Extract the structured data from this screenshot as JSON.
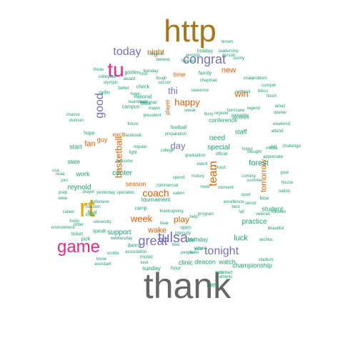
{
  "colors": {
    "background": "#ffffff",
    "teal": "#1b9e77",
    "orange": "#d95f02",
    "purple": "#7570b3",
    "pink": "#e7298a",
    "green": "#66a61e",
    "gold": "#e6ab02",
    "brown": "#a6761d",
    "gray": "#666666"
  },
  "words": [
    {
      "text": "thank",
      "color": "gray",
      "size": 50,
      "vertical": false
    },
    {
      "text": "http",
      "color": "brown",
      "size": 44,
      "vertical": false
    },
    {
      "text": "rt",
      "color": "gold",
      "size": 36,
      "vertical": false
    },
    {
      "text": "tu",
      "color": "pink",
      "size": 28,
      "vertical": false
    },
    {
      "text": "game",
      "color": "pink",
      "size": 24,
      "vertical": false
    },
    {
      "text": "tulsa",
      "color": "purple",
      "size": 20,
      "vertical": false
    },
    {
      "text": "congrat",
      "color": "purple",
      "size": 18,
      "vertical": false
    },
    {
      "text": "great",
      "color": "purple",
      "size": 18,
      "vertical": false
    },
    {
      "text": "tonight",
      "color": "purple",
      "size": 16,
      "vertical": false
    },
    {
      "text": "today",
      "color": "purple",
      "size": 16,
      "vertical": false
    },
    {
      "text": "team",
      "color": "orange",
      "size": 16,
      "vertical": true
    },
    {
      "text": "good",
      "color": "purple",
      "size": 16,
      "vertical": true
    },
    {
      "text": "coach",
      "color": "orange",
      "size": 14,
      "vertical": false
    },
    {
      "text": "week",
      "color": "orange",
      "size": 13,
      "vertical": false
    },
    {
      "text": "basketball",
      "color": "orange",
      "size": 13,
      "vertical": true
    },
    {
      "text": "happy",
      "color": "orange",
      "size": 13,
      "vertical": false
    },
    {
      "text": "win",
      "color": "orange",
      "size": 13,
      "vertical": false
    },
    {
      "text": "day",
      "color": "purple",
      "size": 13,
      "vertical": false
    },
    {
      "text": "thi",
      "color": "purple",
      "size": 13,
      "vertical": false
    },
    {
      "text": "play",
      "color": "orange",
      "size": 12,
      "vertical": false
    },
    {
      "text": "wake",
      "color": "orange",
      "size": 11,
      "vertical": false
    },
    {
      "text": "tomorrow",
      "color": "orange",
      "size": 11,
      "vertical": true
    },
    {
      "text": "night",
      "color": "orange",
      "size": 11,
      "vertical": false
    },
    {
      "text": "new",
      "color": "orange",
      "size": 11,
      "vertical": false
    },
    {
      "text": "fan",
      "color": "orange",
      "size": 11,
      "vertical": false
    },
    {
      "text": "forest",
      "color": "teal",
      "size": 11,
      "vertical": false
    },
    {
      "text": "luck",
      "color": "teal",
      "size": 11,
      "vertical": false
    },
    {
      "text": "support",
      "color": "teal",
      "size": 10,
      "vertical": false
    },
    {
      "text": "need",
      "color": "teal",
      "size": 10,
      "vertical": false
    },
    {
      "text": "special",
      "color": "teal",
      "size": 10,
      "vertical": false
    },
    {
      "text": "practice",
      "color": "teal",
      "size": 10,
      "vertical": false
    },
    {
      "text": "reynold",
      "color": "teal",
      "size": 10,
      "vertical": false
    },
    {
      "text": "center",
      "color": "teal",
      "size": 10,
      "vertical": false
    },
    {
      "text": "championship",
      "color": "teal",
      "size": 9,
      "vertical": false
    },
    {
      "text": "deacon",
      "color": "teal",
      "size": 9,
      "vertical": false
    },
    {
      "text": "watch",
      "color": "teal",
      "size": 9,
      "vertical": false
    },
    {
      "text": "clinic",
      "color": "teal",
      "size": 9,
      "vertical": false
    },
    {
      "text": "men",
      "color": "teal",
      "size": 9,
      "vertical": false
    },
    {
      "text": "season",
      "color": "orange",
      "size": 9,
      "vertical": false
    },
    {
      "text": "time",
      "color": "orange",
      "size": 9,
      "vertical": false
    },
    {
      "text": "start",
      "color": "teal",
      "size": 9,
      "vertical": false
    },
    {
      "text": "work",
      "color": "teal",
      "size": 9,
      "vertical": false
    },
    {
      "text": "student",
      "color": "teal",
      "size": 9,
      "vertical": false
    },
    {
      "text": "staff",
      "color": "teal",
      "size": 9,
      "vertical": false
    },
    {
      "text": "guy",
      "color": "orange",
      "size": 9,
      "vertical": false
    },
    {
      "text": "sunday",
      "color": "teal",
      "size": 8,
      "vertical": false
    },
    {
      "text": "state",
      "color": "teal",
      "size": 8,
      "vertical": false
    },
    {
      "text": "tournament",
      "color": "teal",
      "size": 8,
      "vertical": false
    },
    {
      "text": "birthday",
      "color": "teal",
      "size": 8,
      "vertical": false
    },
    {
      "text": "conference",
      "color": "teal",
      "size": 8,
      "vertical": false
    },
    {
      "text": "holiday",
      "color": "teal",
      "size": 7,
      "vertical": false
    },
    {
      "text": "family",
      "color": "teal",
      "size": 7,
      "vertical": false
    },
    {
      "text": "national",
      "color": "teal",
      "size": 7,
      "vertical": false
    },
    {
      "text": "campus",
      "color": "teal",
      "size": 7,
      "vertical": false
    },
    {
      "text": "football",
      "color": "teal",
      "size": 7,
      "vertical": false
    },
    {
      "text": "final",
      "color": "teal",
      "size": 7,
      "vertical": false
    },
    {
      "text": "camp",
      "color": "teal",
      "size": 7,
      "vertical": false
    },
    {
      "text": "hope",
      "color": "teal",
      "size": 7,
      "vertical": false
    },
    {
      "text": "lose",
      "color": "teal",
      "size": 7,
      "vertical": false
    },
    {
      "text": "radio",
      "color": "teal",
      "size": 7,
      "vertical": false
    },
    {
      "text": "check",
      "color": "teal",
      "size": 7,
      "vertical": false
    },
    {
      "text": "golden",
      "color": "teal",
      "size": 7,
      "vertical": false
    },
    {
      "text": "pick",
      "color": "teal",
      "size": 7,
      "vertical": false
    },
    {
      "text": "women",
      "color": "teal",
      "size": 7,
      "vertical": false
    },
    {
      "text": "excit",
      "color": "orange",
      "size": 8,
      "vertical": false
    },
    {
      "text": "player",
      "color": "orange",
      "size": 8,
      "vertical": true
    },
    {
      "text": "ticket",
      "color": "teal",
      "size": 7,
      "vertical": false
    },
    {
      "text": "speak",
      "color": "teal",
      "size": 7,
      "vertical": false
    },
    {
      "text": "music",
      "color": "teal",
      "size": 7,
      "vertical": false
    },
    {
      "text": "danny",
      "color": "teal",
      "size": 7,
      "vertical": false
    },
    {
      "text": "hour",
      "color": "teal",
      "size": 7,
      "vertical": false
    },
    {
      "text": "open",
      "color": "teal",
      "size": 7,
      "vertical": false
    },
    {
      "text": "life",
      "color": "teal",
      "size": 7,
      "vertical": false
    },
    {
      "text": "career",
      "color": "teal",
      "size": 6,
      "vertical": false
    },
    {
      "text": "environment",
      "color": "teal",
      "size": 6,
      "vertical": false
    },
    {
      "text": "hoop",
      "color": "teal",
      "size": 6,
      "vertical": false
    },
    {
      "text": "order",
      "color": "teal",
      "size": 6,
      "vertical": false
    },
    {
      "text": "prep",
      "color": "teal",
      "size": 6,
      "vertical": false
    },
    {
      "text": "wear",
      "color": "teal",
      "size": 6,
      "vertical": false
    },
    {
      "text": "join",
      "color": "teal",
      "size": 6,
      "vertical": false
    },
    {
      "text": "usa",
      "color": "teal",
      "size": 6,
      "vertical": false
    },
    {
      "text": "ncaa",
      "color": "teal",
      "size": 6,
      "vertical": false
    },
    {
      "text": "chance",
      "color": "teal",
      "size": 6,
      "vertical": false
    },
    {
      "text": "duncan",
      "color": "teal",
      "size": 6,
      "vertical": false
    },
    {
      "text": "throw",
      "color": "teal",
      "size": 6,
      "vertical": false
    },
    {
      "text": "volleyball",
      "color": "teal",
      "size": 6,
      "vertical": false
    },
    {
      "text": "olympic",
      "color": "teal",
      "size": 6,
      "vertical": false
    },
    {
      "text": "award",
      "color": "teal",
      "size": 6,
      "vertical": false
    },
    {
      "text": "second",
      "color": "teal",
      "size": 6,
      "vertical": false
    },
    {
      "text": "believe",
      "color": "teal",
      "size": 6,
      "vertical": false
    },
    {
      "text": "winston",
      "color": "teal",
      "size": 6,
      "vertical": false
    },
    {
      "text": "forward",
      "color": "teal",
      "size": 6,
      "vertical": false
    },
    {
      "text": "leadership",
      "color": "teal",
      "size": 6,
      "vertical": false
    },
    {
      "text": "brown",
      "color": "teal",
      "size": 6,
      "vertical": false
    },
    {
      "text": "person",
      "color": "teal",
      "size": 6,
      "vertical": false
    },
    {
      "text": "sunny",
      "color": "teal",
      "size": 6,
      "vertical": false
    },
    {
      "text": "school",
      "color": "teal",
      "size": 6,
      "vertical": false
    },
    {
      "text": "share",
      "color": "teal",
      "size": 6,
      "vertical": false
    },
    {
      "text": "problem",
      "color": "teal",
      "size": 6,
      "vertical": false
    },
    {
      "text": "compet",
      "color": "teal",
      "size": 6,
      "vertical": false
    },
    {
      "text": "finish",
      "color": "teal",
      "size": 6,
      "vertical": false
    },
    {
      "text": "network",
      "color": "teal",
      "size": 6,
      "vertical": false
    },
    {
      "text": "bless",
      "color": "teal",
      "size": 6,
      "vertical": false
    },
    {
      "text": "amaz",
      "color": "teal",
      "size": 6,
      "vertical": false
    },
    {
      "text": "opener",
      "color": "teal",
      "size": 6,
      "vertical": false
    },
    {
      "text": "weekend",
      "color": "teal",
      "size": 6,
      "vertical": false
    },
    {
      "text": "attend",
      "color": "teal",
      "size": 6,
      "vertical": false
    },
    {
      "text": "visit",
      "color": "teal",
      "size": 6,
      "vertical": false
    },
    {
      "text": "challenge",
      "color": "teal",
      "size": 6,
      "vertical": false
    },
    {
      "text": "goal",
      "color": "teal",
      "size": 6,
      "vertical": false
    },
    {
      "text": "house",
      "color": "teal",
      "size": 6,
      "vertical": false
    },
    {
      "text": "nation",
      "color": "teal",
      "size": 6,
      "vertical": false
    },
    {
      "text": "beautiful",
      "color": "teal",
      "size": 6,
      "vertical": false
    },
    {
      "text": "follower",
      "color": "teal",
      "size": 6,
      "vertical": false
    },
    {
      "text": "veteran",
      "color": "teal",
      "size": 6,
      "vertical": false
    },
    {
      "text": "wichita",
      "color": "teal",
      "size": 6,
      "vertical": false
    },
    {
      "text": "stadium",
      "color": "teal",
      "size": 6,
      "vertical": false
    },
    {
      "text": "athletic",
      "color": "teal",
      "size": 6,
      "vertical": false
    },
    {
      "text": "contact",
      "color": "teal",
      "size": 6,
      "vertical": false
    },
    {
      "text": "know",
      "color": "teal",
      "size": 6,
      "vertical": false
    },
    {
      "text": "assistant",
      "color": "teal",
      "size": 6,
      "vertical": false
    },
    {
      "text": "scottie",
      "color": "teal",
      "size": 6,
      "vertical": false
    },
    {
      "text": "wednesday",
      "color": "teal",
      "size": 6,
      "vertical": false
    },
    {
      "text": "association",
      "color": "teal",
      "size": 6,
      "vertical": false
    },
    {
      "text": "hear",
      "color": "teal",
      "size": 6,
      "vertical": false
    },
    {
      "text": "look",
      "color": "teal",
      "size": 6,
      "vertical": false
    },
    {
      "text": "people",
      "color": "teal",
      "size": 6,
      "vertical": false
    },
    {
      "text": "love",
      "color": "teal",
      "size": 6,
      "vertical": false
    },
    {
      "text": "year",
      "color": "teal",
      "size": 6,
      "vertical": false
    },
    {
      "text": "town",
      "color": "teal",
      "size": 6,
      "vertical": false
    },
    {
      "text": "post",
      "color": "teal",
      "size": 6,
      "vertical": false
    },
    {
      "text": "intensity",
      "color": "teal",
      "size": 6,
      "vertical": false
    },
    {
      "text": "commercial",
      "color": "teal",
      "size": 6,
      "vertical": false
    },
    {
      "text": "spend",
      "color": "teal",
      "size": 6,
      "vertical": false
    },
    {
      "text": "salem",
      "color": "teal",
      "size": 6,
      "vertical": false
    },
    {
      "text": "operation",
      "color": "teal",
      "size": 6,
      "vertical": false
    },
    {
      "text": "yesterday",
      "color": "teal",
      "size": 6,
      "vertical": false
    },
    {
      "text": "prayer",
      "color": "teal",
      "size": 6,
      "vertical": false
    },
    {
      "text": "welcome",
      "color": "teal",
      "size": 6,
      "vertical": false
    },
    {
      "text": "fight",
      "color": "teal",
      "size": 6,
      "vertical": false
    },
    {
      "text": "regular",
      "color": "teal",
      "size": 6,
      "vertical": false
    },
    {
      "text": "college",
      "color": "teal",
      "size": 6,
      "vertical": false
    },
    {
      "text": "graduation",
      "color": "teal",
      "size": 6,
      "vertical": false
    },
    {
      "text": "official",
      "color": "teal",
      "size": 6,
      "vertical": false
    },
    {
      "text": "preparation",
      "color": "teal",
      "size": 6,
      "vertical": false
    },
    {
      "text": "teammate",
      "color": "teal",
      "size": 6,
      "vertical": false
    },
    {
      "text": "freshman",
      "color": "teal",
      "size": 6,
      "vertical": false
    },
    {
      "text": "president",
      "color": "teal",
      "size": 6,
      "vertical": false
    },
    {
      "text": "future",
      "color": "teal",
      "size": 6,
      "vertical": false
    },
    {
      "text": "facebook",
      "color": "teal",
      "size": 6,
      "vertical": false
    },
    {
      "text": "chapman",
      "color": "teal",
      "size": 6,
      "vertical": false
    },
    {
      "text": "tough",
      "color": "teal",
      "size": 6,
      "vertical": false
    },
    {
      "text": "soccer",
      "color": "teal",
      "size": 6,
      "vertical": false
    },
    {
      "text": "tuesday",
      "color": "teal",
      "size": 6,
      "vertical": false
    },
    {
      "text": "host",
      "color": "teal",
      "size": 6,
      "vertical": false
    },
    {
      "text": "better",
      "color": "teal",
      "size": 6,
      "vertical": false
    },
    {
      "text": "huge",
      "color": "teal",
      "size": 6,
      "vertical": false
    },
    {
      "text": "office",
      "color": "teal",
      "size": 6,
      "vertical": false
    },
    {
      "text": "mayor",
      "color": "teal",
      "size": 6,
      "vertical": false
    },
    {
      "text": "lawrence",
      "color": "teal",
      "size": 6,
      "vertical": false
    },
    {
      "text": "sneak",
      "color": "teal",
      "size": 6,
      "vertical": false
    },
    {
      "text": "hurricane",
      "color": "teal",
      "size": 6,
      "vertical": false
    },
    {
      "text": "gameday",
      "color": "teal",
      "size": 6,
      "vertical": false
    },
    {
      "text": "busy",
      "color": "teal",
      "size": 6,
      "vertical": false
    },
    {
      "text": "register",
      "color": "teal",
      "size": 6,
      "vertical": false
    },
    {
      "text": "legend",
      "color": "teal",
      "size": 6,
      "vertical": false
    },
    {
      "text": "media",
      "color": "teal",
      "size": 6,
      "vertical": false
    },
    {
      "text": "thought",
      "color": "teal",
      "size": 6,
      "vertical": false
    },
    {
      "text": "honor",
      "color": "teal",
      "size": 6,
      "vertical": false
    },
    {
      "text": "appreciate",
      "color": "teal",
      "size": 6,
      "vertical": false
    },
    {
      "text": "coming",
      "color": "teal",
      "size": 6,
      "vertical": false
    },
    {
      "text": "summer",
      "color": "teal",
      "size": 6,
      "vertical": false
    },
    {
      "text": "moment",
      "color": "teal",
      "size": 6,
      "vertical": false
    },
    {
      "text": "excellence",
      "color": "teal",
      "size": 6,
      "vertical": false
    },
    {
      "text": "fall",
      "color": "teal",
      "size": 6,
      "vertical": false
    },
    {
      "text": "proud",
      "color": "teal",
      "size": 6,
      "vertical": false
    },
    {
      "text": "meet",
      "color": "teal",
      "size": 6,
      "vertical": false
    },
    {
      "text": "history",
      "color": "teal",
      "size": 6,
      "vertical": false
    },
    {
      "text": "event",
      "color": "teal",
      "size": 6,
      "vertical": false
    },
    {
      "text": "program",
      "color": "teal",
      "size": 6,
      "vertical": false
    },
    {
      "text": "thanksgiving",
      "color": "teal",
      "size": 6,
      "vertical": false
    },
    {
      "text": "help",
      "color": "teal",
      "size": 6,
      "vertical": false
    },
    {
      "text": "sport",
      "color": "teal",
      "size": 6,
      "vertical": false
    },
    {
      "text": "senior",
      "color": "teal",
      "size": 6,
      "vertical": false
    },
    {
      "text": "university",
      "color": "teal",
      "size": 6,
      "vertical": false
    },
    {
      "text": "defensive",
      "color": "teal",
      "size": 6,
      "vertical": false
    },
    {
      "text": "houston",
      "color": "teal",
      "size": 6,
      "vertical": false
    },
    {
      "text": "iowa",
      "color": "teal",
      "size": 6,
      "vertical": false
    },
    {
      "text": "best",
      "color": "teal",
      "size": 6,
      "vertical": false
    }
  ]
}
